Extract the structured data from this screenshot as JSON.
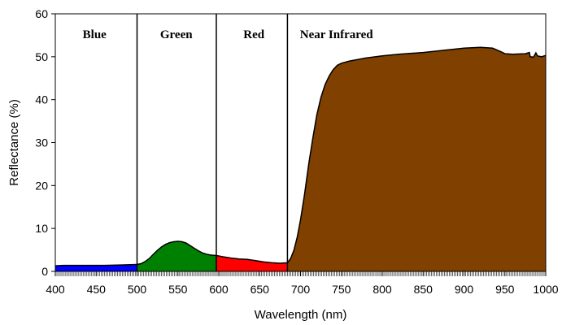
{
  "chart_data": {
    "type": "area",
    "title": "",
    "xlabel": "Wavelength (nm)",
    "ylabel": "Reflectance (%)",
    "xlim": [
      400,
      1000
    ],
    "ylim": [
      0,
      60
    ],
    "xticks": [
      400,
      450,
      500,
      550,
      600,
      650,
      700,
      750,
      800,
      850,
      900,
      950,
      1000
    ],
    "yticks": [
      0,
      10,
      20,
      30,
      40,
      50,
      60
    ],
    "grid": false,
    "band_dividers": [
      500,
      597,
      684
    ],
    "band_labels": [
      {
        "text": "Blue",
        "x": 448
      },
      {
        "text": "Green",
        "x": 548
      },
      {
        "text": "Red",
        "x": 643
      },
      {
        "text": "Near Infrared",
        "x": 744
      }
    ],
    "segments": [
      {
        "name": "blue",
        "color": "#0000ff",
        "points": [
          [
            400,
            1.3
          ],
          [
            410,
            1.4
          ],
          [
            420,
            1.4
          ],
          [
            440,
            1.4
          ],
          [
            460,
            1.4
          ],
          [
            480,
            1.5
          ],
          [
            500,
            1.6
          ]
        ]
      },
      {
        "name": "green",
        "color": "#008000",
        "points": [
          [
            500,
            1.6
          ],
          [
            505,
            1.8
          ],
          [
            510,
            2.3
          ],
          [
            515,
            3.0
          ],
          [
            520,
            4.0
          ],
          [
            525,
            4.9
          ],
          [
            530,
            5.7
          ],
          [
            535,
            6.3
          ],
          [
            540,
            6.7
          ],
          [
            545,
            6.9
          ],
          [
            550,
            7.0
          ],
          [
            555,
            6.9
          ],
          [
            560,
            6.6
          ],
          [
            565,
            6.0
          ],
          [
            570,
            5.4
          ],
          [
            575,
            4.8
          ],
          [
            580,
            4.3
          ],
          [
            585,
            4.0
          ],
          [
            590,
            3.8
          ],
          [
            597,
            3.7
          ]
        ]
      },
      {
        "name": "red",
        "color": "#ff0000",
        "points": [
          [
            597,
            3.7
          ],
          [
            605,
            3.4
          ],
          [
            615,
            3.1
          ],
          [
            625,
            2.9
          ],
          [
            635,
            2.8
          ],
          [
            645,
            2.5
          ],
          [
            655,
            2.2
          ],
          [
            665,
            2.0
          ],
          [
            675,
            1.9
          ],
          [
            684,
            2.0
          ]
        ]
      },
      {
        "name": "near-infrared",
        "color": "#804000",
        "points": [
          [
            684,
            2.0
          ],
          [
            688,
            3.0
          ],
          [
            692,
            5.0
          ],
          [
            696,
            8.0
          ],
          [
            700,
            12.0
          ],
          [
            705,
            18.0
          ],
          [
            710,
            25.0
          ],
          [
            715,
            31.0
          ],
          [
            720,
            36.5
          ],
          [
            725,
            40.5
          ],
          [
            730,
            43.5
          ],
          [
            735,
            45.5
          ],
          [
            740,
            47.0
          ],
          [
            745,
            48.0
          ],
          [
            750,
            48.5
          ],
          [
            760,
            49.0
          ],
          [
            780,
            49.7
          ],
          [
            800,
            50.2
          ],
          [
            820,
            50.6
          ],
          [
            850,
            51.0
          ],
          [
            880,
            51.6
          ],
          [
            900,
            52.0
          ],
          [
            920,
            52.2
          ],
          [
            935,
            52.0
          ],
          [
            945,
            51.2
          ],
          [
            950,
            50.7
          ],
          [
            960,
            50.6
          ],
          [
            975,
            50.7
          ],
          [
            980,
            51.0
          ],
          [
            981,
            50.0
          ],
          [
            985,
            49.9
          ],
          [
            988,
            50.9
          ],
          [
            990,
            50.2
          ],
          [
            995,
            50.0
          ],
          [
            1000,
            50.3
          ]
        ]
      }
    ]
  }
}
